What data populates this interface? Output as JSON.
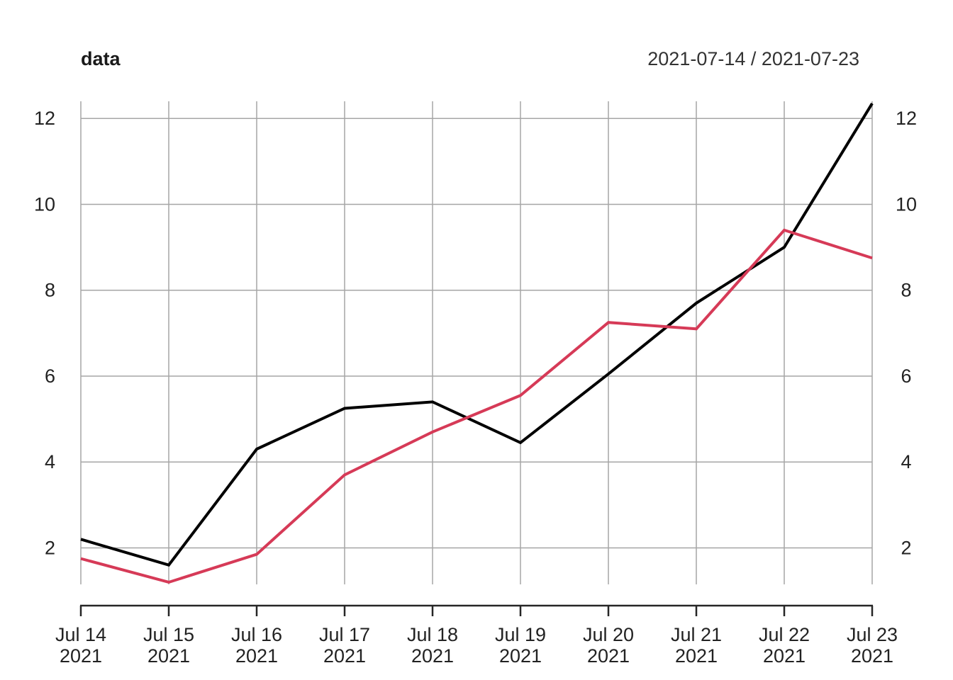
{
  "header": {
    "title": "data",
    "date_range": "2021-07-14 / 2021-07-23"
  },
  "chart_data": {
    "type": "line",
    "title": "data",
    "subtitle_right": "2021-07-14 / 2021-07-23",
    "categories": [
      "Jul 14",
      "Jul 15",
      "Jul 16",
      "Jul 17",
      "Jul 18",
      "Jul 19",
      "Jul 20",
      "Jul 21",
      "Jul 22",
      "Jul 23"
    ],
    "category_year": "2021",
    "y_ticks": [
      2,
      4,
      6,
      8,
      10,
      12
    ],
    "ylim": [
      1.15,
      12.4
    ],
    "grid": true,
    "legend": "none",
    "y_axis_sides": [
      "left",
      "right"
    ],
    "series": [
      {
        "id": "black-series",
        "color": "#000000",
        "values": [
          2.2,
          1.6,
          4.3,
          5.25,
          5.4,
          4.45,
          6.05,
          7.7,
          9.0,
          12.35
        ]
      },
      {
        "id": "red-series",
        "color": "#d63a57",
        "values": [
          1.75,
          1.2,
          1.85,
          3.7,
          4.7,
          5.55,
          7.25,
          7.1,
          9.4,
          8.75
        ]
      }
    ],
    "colors": {
      "grid": "#a6a6a6",
      "axis": "#262626",
      "tick_label": "#222222",
      "title": "#1a1a1a",
      "subtitle": "#333333"
    }
  }
}
